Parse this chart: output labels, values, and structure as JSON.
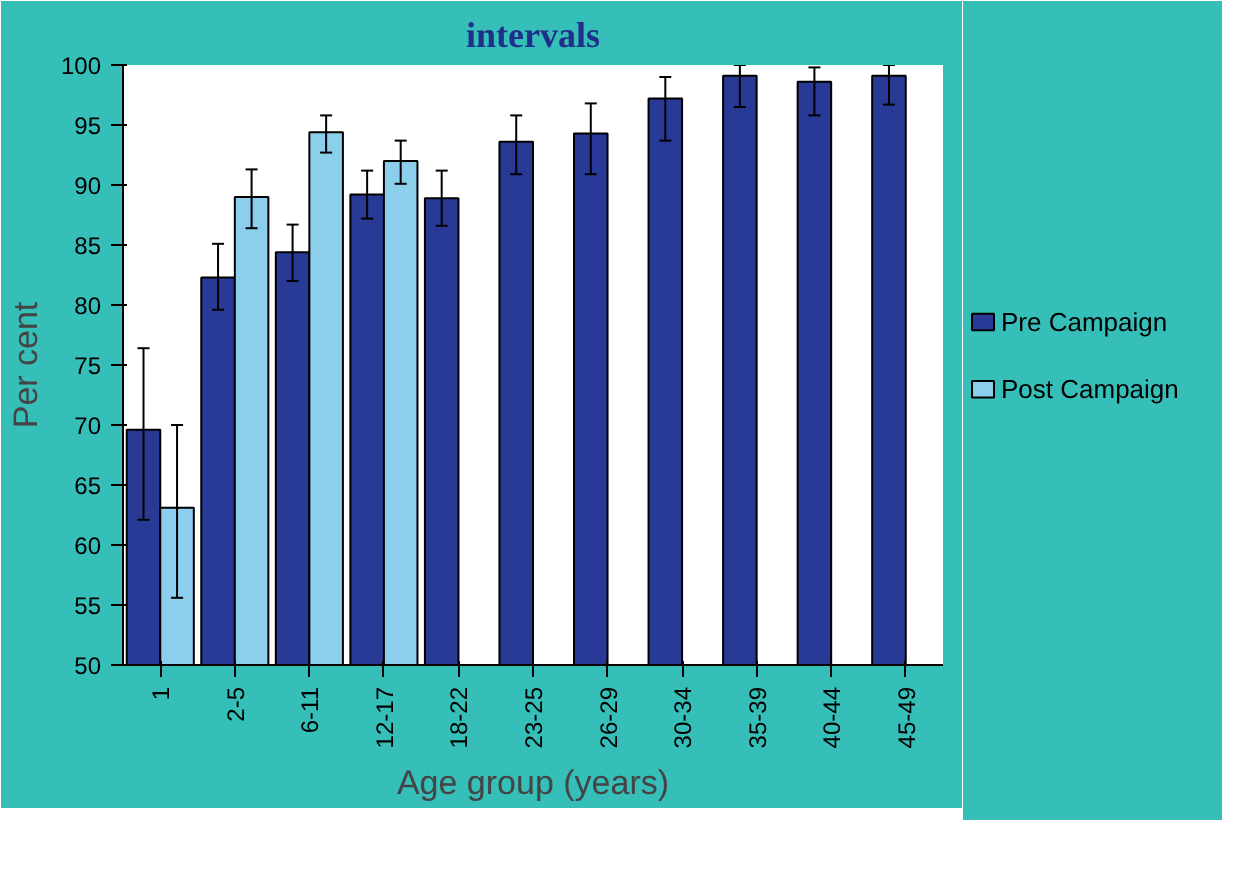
{
  "chart_data": {
    "type": "bar",
    "title": "intervals",
    "xlabel": "Age group (years)",
    "ylabel": "Per cent",
    "categories": [
      "1",
      "2-5",
      "6-11",
      "12-17",
      "18-22",
      "23-25",
      "26-29",
      "30-34",
      "35-39",
      "40-44",
      "45-49"
    ],
    "series": [
      {
        "name": "Pre Campaign",
        "color": "#283a96",
        "values": [
          69.6,
          82.3,
          84.4,
          89.2,
          88.9,
          93.6,
          94.3,
          97.2,
          99.1,
          98.6,
          99.1
        ],
        "errors": [
          [
            62.1,
            76.4
          ],
          [
            79.6,
            85.1
          ],
          [
            82.0,
            86.7
          ],
          [
            87.2,
            91.2
          ],
          [
            86.6,
            91.2
          ],
          [
            90.9,
            95.8
          ],
          [
            90.9,
            96.8
          ],
          [
            93.7,
            99.0
          ],
          [
            96.5,
            100
          ],
          [
            95.8,
            99.8
          ],
          [
            96.7,
            100
          ]
        ]
      },
      {
        "name": "Post Campaign",
        "color": "#8ccfec",
        "values": [
          63.1,
          89.0,
          94.4,
          92.0,
          null,
          null,
          null,
          null,
          null,
          null,
          null
        ],
        "errors": [
          [
            55.6,
            70.0
          ],
          [
            86.4,
            91.3
          ],
          [
            92.7,
            95.8
          ],
          [
            90.1,
            93.7
          ],
          null,
          null,
          null,
          null,
          null,
          null,
          null
        ]
      }
    ],
    "ylim": [
      50,
      100
    ],
    "yticks": [
      50,
      55,
      60,
      65,
      70,
      75,
      80,
      85,
      90,
      95,
      100
    ],
    "grid": false,
    "legend": "right"
  }
}
